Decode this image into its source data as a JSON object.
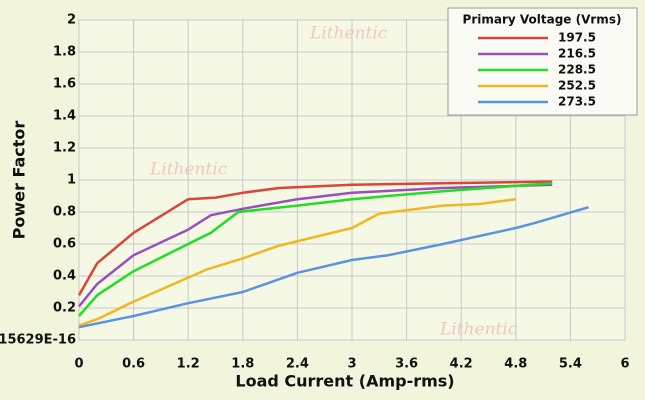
{
  "chart_data": {
    "type": "line",
    "watermark": "Lithentic",
    "x_label": "Load Current (Amp-rms)",
    "y_label": "Power Factor",
    "legend_title": "Primary Voltage (Vrms)",
    "xlim": [
      0,
      6
    ],
    "xticks": [
      0,
      0.6,
      1.2,
      1.8,
      2.4,
      3,
      3.6,
      4.2,
      4.8,
      5.4,
      6
    ],
    "ylim": [
      0,
      2
    ],
    "yticks": [
      {
        "value": 0,
        "label": "15629E-16"
      },
      0.2,
      0.4,
      0.6,
      0.8,
      1,
      1.2,
      1.4,
      1.6,
      1.8,
      2
    ],
    "grid": true,
    "series": [
      {
        "name": "197.5",
        "color": "#d9453a",
        "x": [
          0,
          0.2,
          0.6,
          1.2,
          1.5,
          1.8,
          2.2,
          3,
          4,
          5.2
        ],
        "values": [
          0.28,
          0.48,
          0.67,
          0.88,
          0.89,
          0.92,
          0.95,
          0.97,
          0.98,
          0.99
        ]
      },
      {
        "name": "216.5",
        "color": "#9b4fbf",
        "x": [
          0,
          0.2,
          0.6,
          1.2,
          1.45,
          1.8,
          2.4,
          3,
          4,
          5.2
        ],
        "values": [
          0.21,
          0.35,
          0.53,
          0.69,
          0.78,
          0.82,
          0.88,
          0.92,
          0.95,
          0.97
        ]
      },
      {
        "name": "228.5",
        "color": "#22dd22",
        "x": [
          0,
          0.2,
          0.6,
          1.2,
          1.45,
          1.75,
          2.4,
          3,
          4,
          5.2
        ],
        "values": [
          0.15,
          0.28,
          0.43,
          0.6,
          0.67,
          0.8,
          0.84,
          0.88,
          0.93,
          0.98
        ]
      },
      {
        "name": "252.5",
        "color": "#f2b620",
        "x": [
          0,
          0.2,
          0.6,
          1.4,
          1.8,
          2.2,
          3,
          3.3,
          4,
          4.4,
          4.8
        ],
        "values": [
          0.09,
          0.13,
          0.24,
          0.44,
          0.51,
          0.59,
          0.7,
          0.79,
          0.84,
          0.85,
          0.88
        ]
      },
      {
        "name": "273.5",
        "color": "#5b93e0",
        "x": [
          0,
          0.6,
          1.2,
          1.8,
          2.4,
          3,
          3.4,
          4,
          4.8,
          5,
          5.6
        ],
        "values": [
          0.08,
          0.15,
          0.23,
          0.3,
          0.42,
          0.5,
          0.53,
          0.6,
          0.7,
          0.73,
          0.83
        ]
      }
    ]
  }
}
